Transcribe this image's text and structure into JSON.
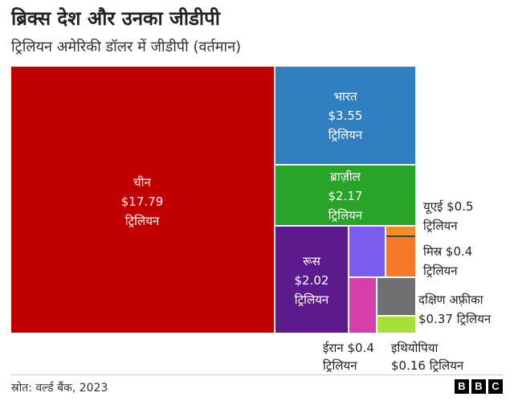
{
  "title": "ब्रिक्स देश और उनका जीडीपी",
  "subtitle": "ट्रिलियन अमेरिकी डॉलर में जीडीपी (वर्तमान)",
  "source": "स्रोत: वर्ल्ड बैंक, 2023",
  "logo": [
    "B",
    "B",
    "C"
  ],
  "chart_data": {
    "type": "treemap",
    "unit": "ट्रिलियन",
    "cells": [
      {
        "name": "चीन",
        "value": 17.79,
        "value_label": "$17.79",
        "unit_label": "ट्रिलियन",
        "color": "#c00000"
      },
      {
        "name": "भारत",
        "value": 3.55,
        "value_label": "$3.55",
        "unit_label": "ट्रिलियन",
        "color": "#2f7fc1"
      },
      {
        "name": "ब्राज़ील",
        "value": 2.17,
        "value_label": "$2.17",
        "unit_label": "ट्रिलियन",
        "color": "#28a428"
      },
      {
        "name": "रूस",
        "value": 2.02,
        "value_label": "$2.02",
        "unit_label": "ट्रिलियन",
        "color": "#5c1a8c"
      },
      {
        "name": "ईरान",
        "value": 0.4,
        "value_label": "$0.4",
        "unit_label": "ट्रिलियन",
        "color": "#7b5cf0"
      },
      {
        "name": "यूएई",
        "value": 0.5,
        "value_label": "$0.5",
        "unit_label": "ट्रिलियन",
        "color": "#f28c28"
      },
      {
        "name": "मिस्र",
        "value": 0.4,
        "value_label": "$0.4",
        "unit_label": "ट्रिलियन",
        "color": "#f47a2a"
      },
      {
        "name": "दक्षिण अफ़्रीका",
        "value": 0.37,
        "value_label": "$0.37",
        "unit_label": "ट्रिलियन",
        "color": "#707070"
      },
      {
        "name": "इथियोपिया",
        "value": 0.16,
        "value_label": "$0.16",
        "unit_label": "ट्रिलियन",
        "color": "#a8e03a"
      }
    ]
  }
}
